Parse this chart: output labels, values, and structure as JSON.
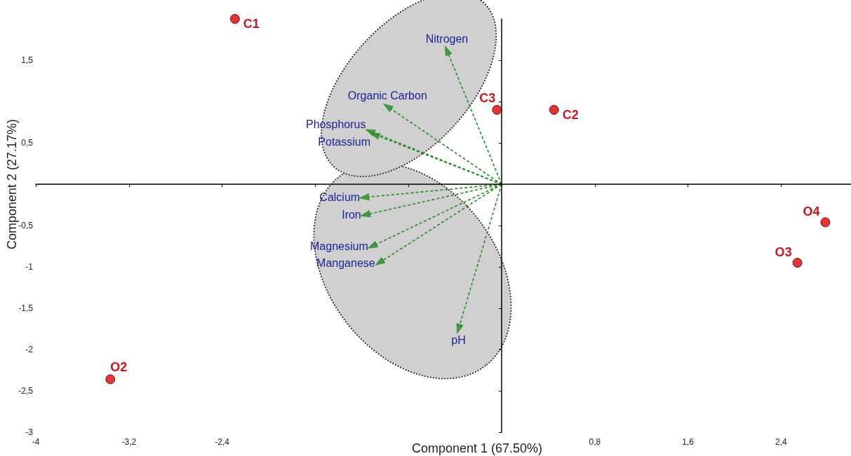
{
  "chart_data": {
    "type": "scatter",
    "xlabel": "Component 1 (67.50%)",
    "ylabel": "Component 2 (27.17%)",
    "xlim": [
      -4,
      3
    ],
    "ylim": [
      -3,
      2
    ],
    "xticks": [
      -4,
      {
        "value": -3.2,
        "label": "-3,2"
      },
      {
        "value": -2.4,
        "label": "-2,4"
      },
      {
        "value": -1.6,
        "label": null
      },
      {
        "value": -0.8,
        "label": null
      },
      {
        "value": 0.8,
        "label": "0,8"
      },
      {
        "value": 1.6,
        "label": "1,6"
      },
      {
        "value": 2.4,
        "label": "2,4"
      }
    ],
    "yticks": [
      {
        "value": 1.5,
        "label": "1,5"
      },
      {
        "value": 1,
        "label": null
      },
      {
        "value": 0.5,
        "label": "0,5"
      },
      {
        "value": -0.5,
        "label": "-0,5"
      },
      -1,
      {
        "value": -1.5,
        "label": "-1,5"
      },
      -2,
      {
        "value": -2.5,
        "label": "-2,5"
      },
      -3
    ],
    "grid": false,
    "marker": "circle",
    "series": [
      {
        "color": "#e00000",
        "x": [
          -2.29,
          0.45,
          -0.04,
          -3.36,
          2.54,
          2.78
        ],
        "values": [
          2.0,
          0.9,
          0.9,
          -2.36,
          -0.95,
          -0.46
        ]
      },
      {
        "color": "#228b22",
        "marker": "triangle",
        "x": [
          -0.47,
          -0.98,
          -1.13,
          -1.09,
          -1.18,
          -1.17,
          -1.11,
          -1.05,
          -0.37
        ],
        "values": [
          1.62,
          0.94,
          0.64,
          0.6,
          -0.16,
          -0.37,
          -0.75,
          -0.95,
          -1.75
        ]
      }
    ],
    "annotations": [
      {
        "text": "C1",
        "x": -2.29,
        "y": 2.0
      },
      {
        "text": "C2",
        "x": 0.45,
        "y": 0.9
      },
      {
        "text": "C3",
        "x": -0.04,
        "y": 0.9
      },
      {
        "text": "O2",
        "x": -3.36,
        "y": -2.36
      },
      {
        "text": "O3",
        "x": 2.54,
        "y": -0.95
      },
      {
        "text": "O4",
        "x": 2.78,
        "y": -0.46
      },
      {
        "text": "Nitrogen",
        "x": -0.47,
        "y": 1.62
      },
      {
        "text": "Organic Carbon",
        "x": -0.98,
        "y": 0.94
      },
      {
        "text": "Phosphorus",
        "x": -1.13,
        "y": 0.64
      },
      {
        "text": "Potassium",
        "x": -1.09,
        "y": 0.6
      },
      {
        "text": "Calcium",
        "x": -1.18,
        "y": -0.16
      },
      {
        "text": "Iron",
        "x": -1.17,
        "y": -0.37
      },
      {
        "text": "Magnesium",
        "x": -1.11,
        "y": -0.75
      },
      {
        "text": "Manganese",
        "x": -1.05,
        "y": -0.95
      },
      {
        "text": "pH",
        "x": -0.37,
        "y": -1.75
      }
    ]
  }
}
